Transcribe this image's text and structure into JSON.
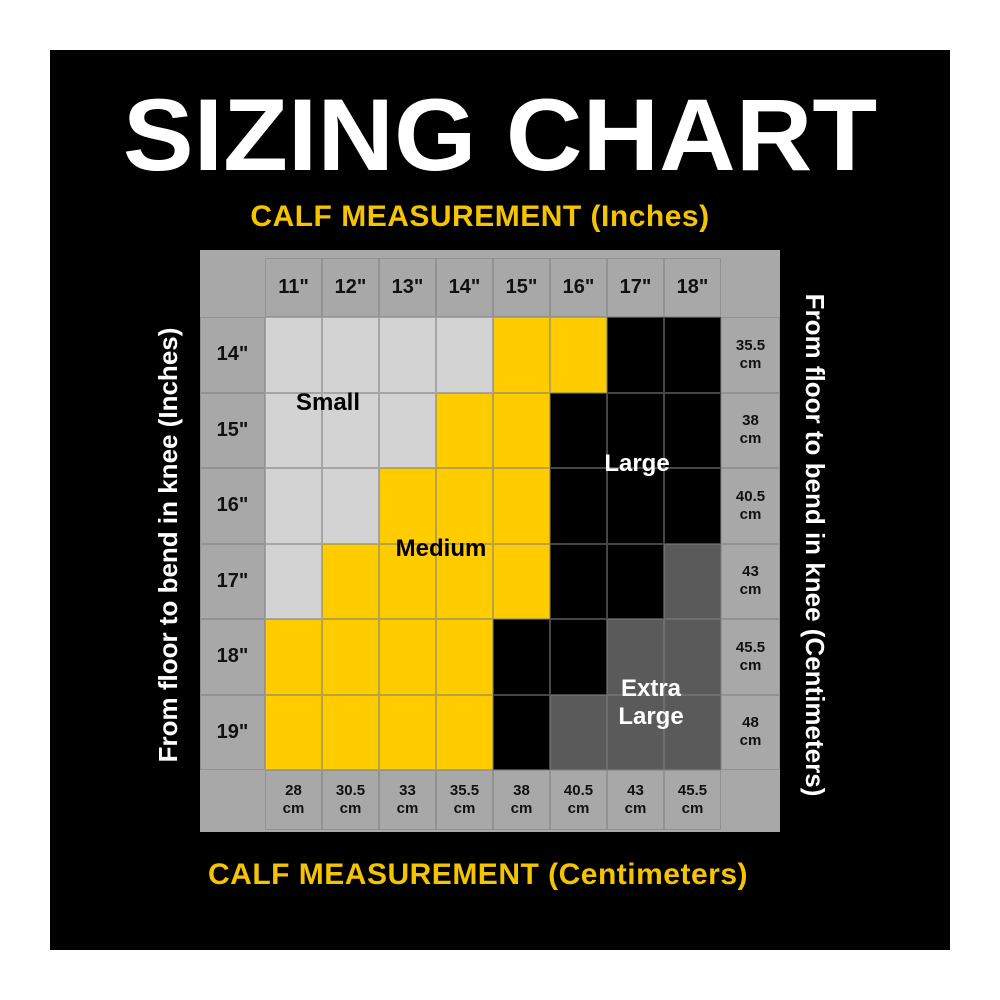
{
  "title": "SIZING CHART",
  "top_label": "CALF MEASUREMENT (Inches)",
  "bottom_label": "CALF MEASUREMENT (Centimeters)",
  "left_label": "From floor to bend in knee (Inches)",
  "right_label": "From floor to bend in knee (Centimeters)",
  "table": {
    "columns_in": [
      "11\"",
      "12\"",
      "13\"",
      "14\"",
      "15\"",
      "16\"",
      "17\"",
      "18\""
    ],
    "columns_cm": [
      "28\ncm",
      "30.5\ncm",
      "33\ncm",
      "35.5\ncm",
      "38\ncm",
      "40.5\ncm",
      "43\ncm",
      "45.5\ncm"
    ],
    "rows_in": [
      "14\"",
      "15\"",
      "16\"",
      "17\"",
      "18\"",
      "19\""
    ],
    "rows_cm": [
      "35.5\ncm",
      "38\ncm",
      "40.5\ncm",
      "43\ncm",
      "45.5\ncm",
      "48\ncm"
    ],
    "cell_colors": [
      [
        "#d3d3d3",
        "#d3d3d3",
        "#d3d3d3",
        "#d3d3d3",
        "#ffcc00",
        "#ffcc00",
        "#000000",
        "#000000"
      ],
      [
        "#d3d3d3",
        "#d3d3d3",
        "#d3d3d3",
        "#ffcc00",
        "#ffcc00",
        "#000000",
        "#000000",
        "#000000"
      ],
      [
        "#d3d3d3",
        "#d3d3d3",
        "#ffcc00",
        "#ffcc00",
        "#ffcc00",
        "#000000",
        "#000000",
        "#000000"
      ],
      [
        "#d3d3d3",
        "#ffcc00",
        "#ffcc00",
        "#ffcc00",
        "#ffcc00",
        "#000000",
        "#000000",
        "#5a5a5a"
      ],
      [
        "#ffcc00",
        "#ffcc00",
        "#ffcc00",
        "#ffcc00",
        "#000000",
        "#000000",
        "#5a5a5a",
        "#5a5a5a"
      ],
      [
        "#ffcc00",
        "#ffcc00",
        "#ffcc00",
        "#ffcc00",
        "#000000",
        "#5a5a5a",
        "#5a5a5a",
        "#5a5a5a"
      ]
    ],
    "size_labels": [
      {
        "text": "Small",
        "color": "#000000"
      },
      {
        "text": "Medium",
        "color": "#000000"
      },
      {
        "text": "Large",
        "color": "#ffffff"
      },
      {
        "text": "Extra\nLarge",
        "color": "#ffffff"
      }
    ]
  }
}
